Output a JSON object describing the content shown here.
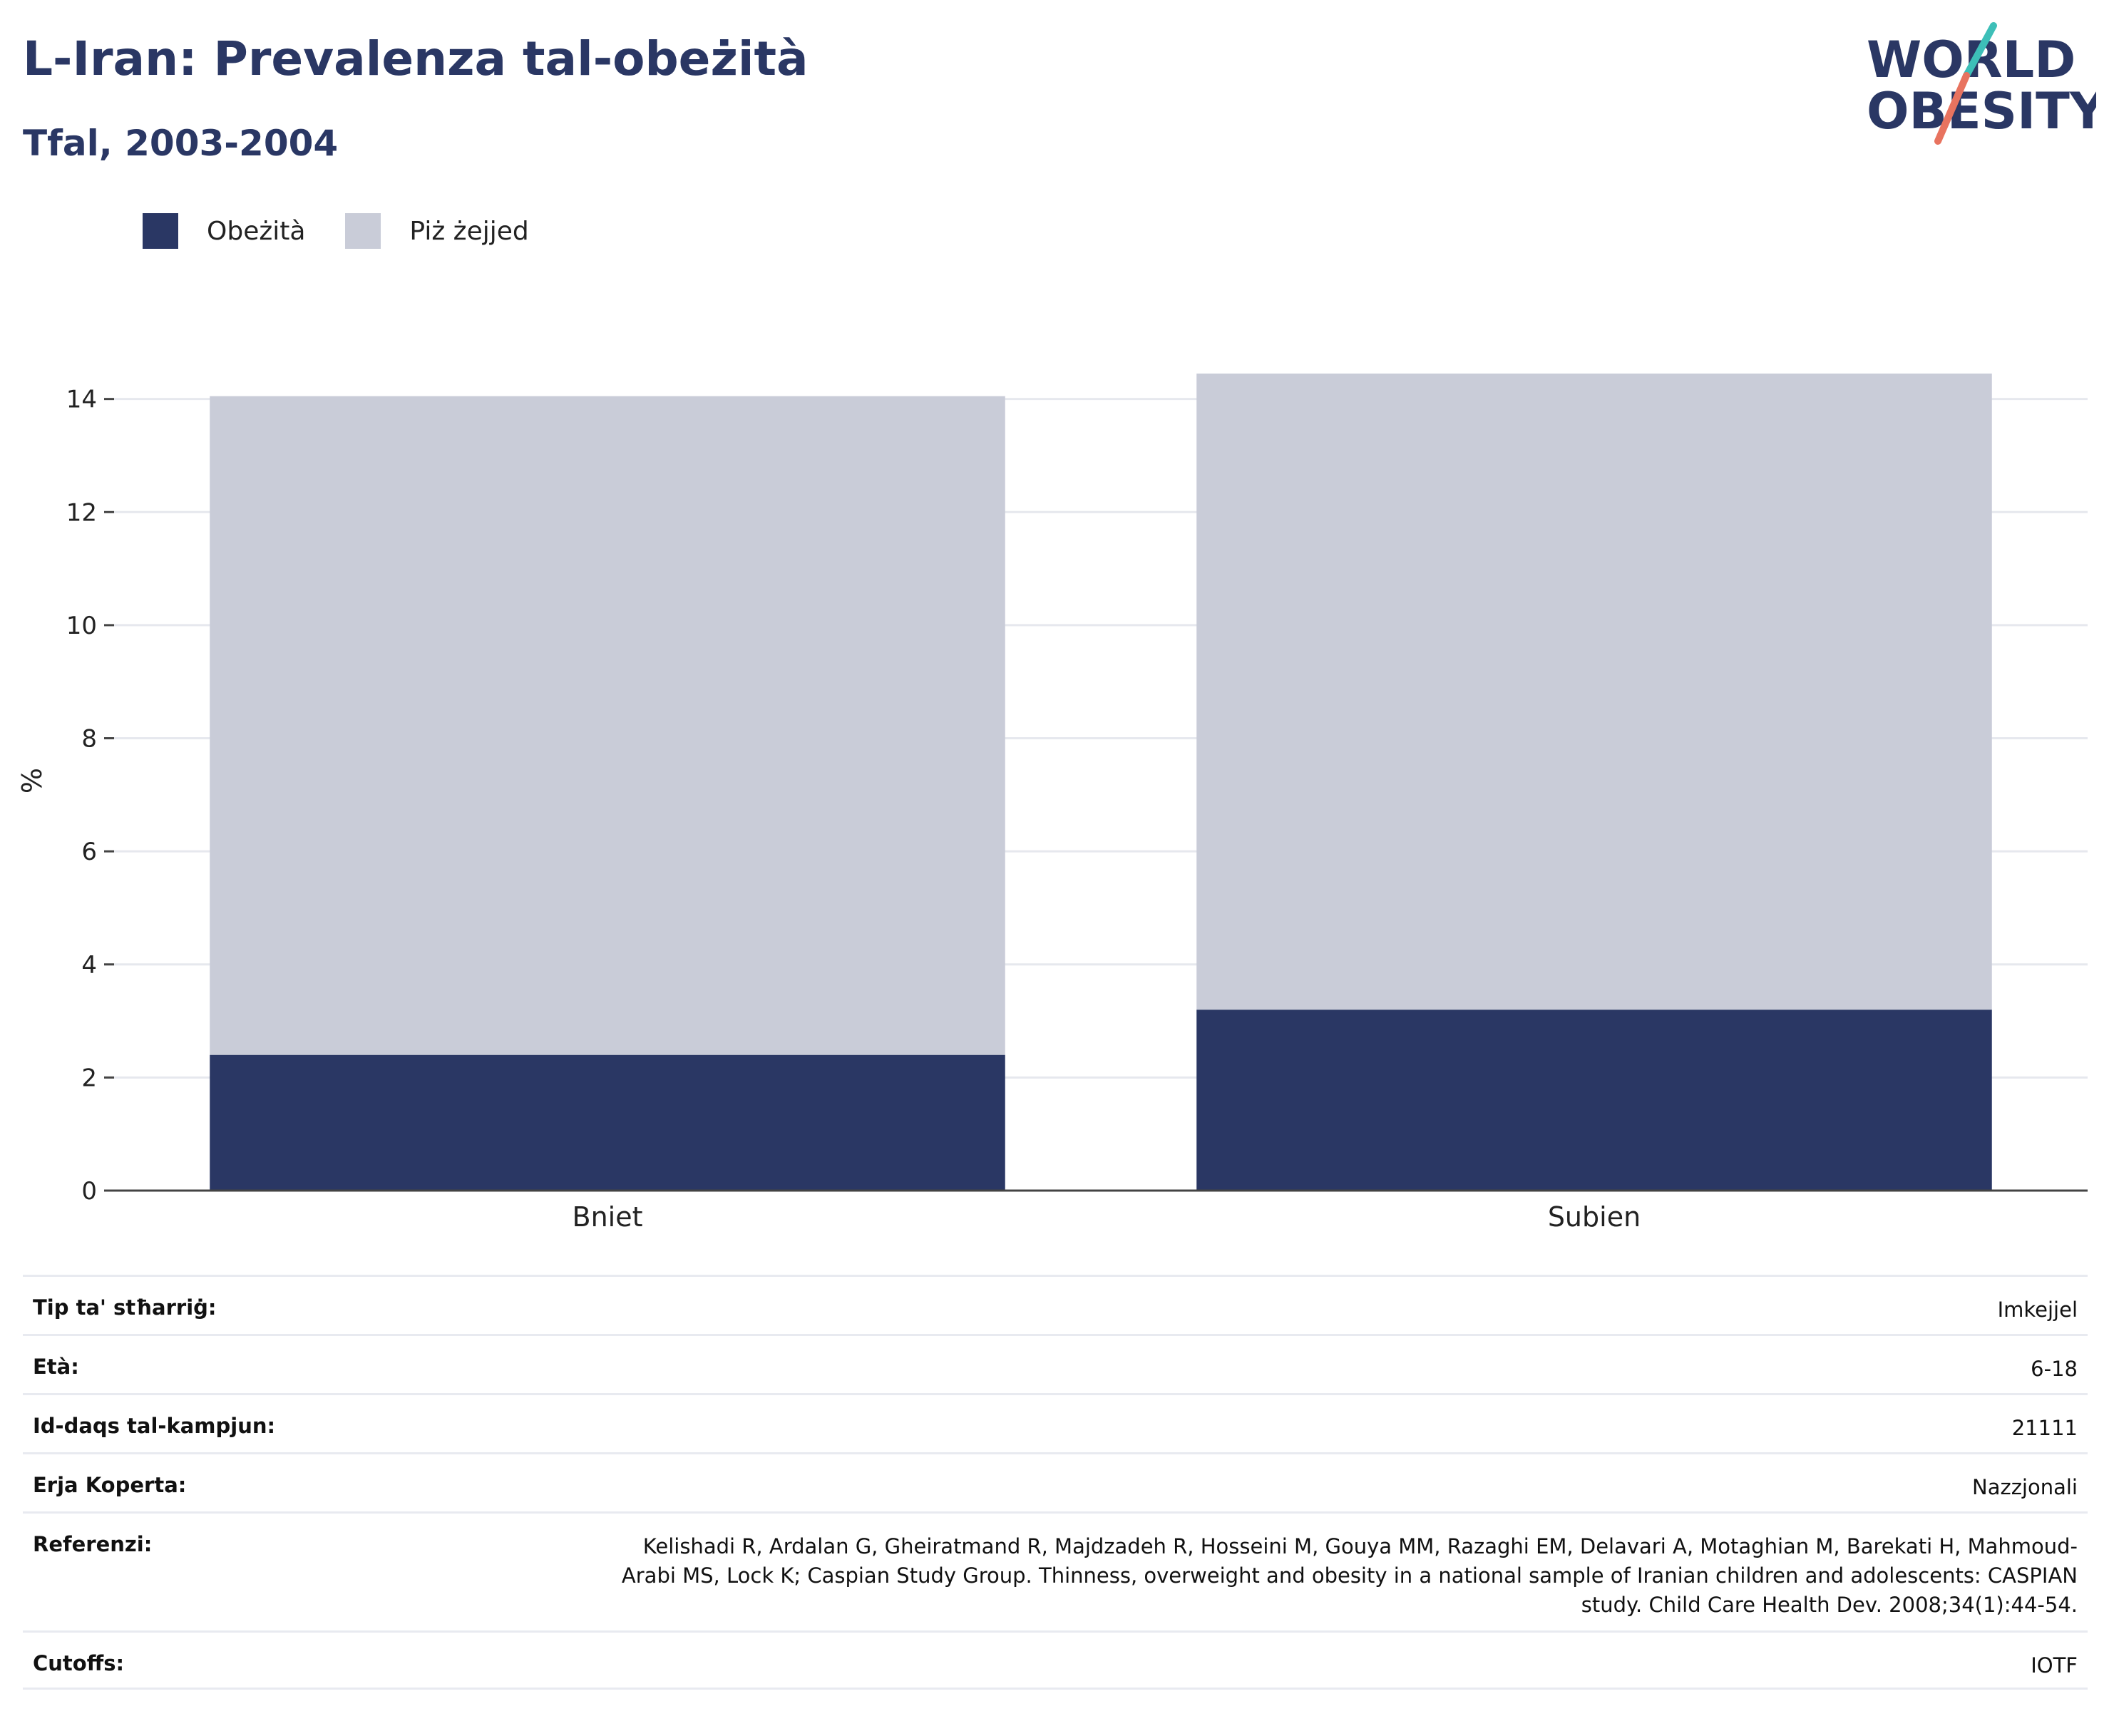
{
  "header": {
    "title": "L-Iran: Prevalenza tal-obeżità",
    "subtitle": "Tfal, 2003-2004"
  },
  "logo": {
    "line1": "WORLD",
    "line2": "OBESITY",
    "accent_teal": "#3dbfb8",
    "accent_coral": "#e8735f",
    "text_color": "#2a3764"
  },
  "legend": {
    "items": [
      {
        "label": "Obeżità",
        "color": "#2a3764"
      },
      {
        "label": "Piż żejjed",
        "color": "#c9ccd8"
      }
    ]
  },
  "chart_data": {
    "type": "bar",
    "stacked": true,
    "categories": [
      "Bniet",
      "Subien"
    ],
    "series": [
      {
        "name": "Obeżità",
        "values": [
          2.4,
          3.2
        ],
        "color": "#2a3764"
      },
      {
        "name": "Piż żejjed",
        "values": [
          11.65,
          11.25
        ],
        "color": "#c9ccd8"
      }
    ],
    "ylabel": "%",
    "ylim": [
      0,
      14.5
    ],
    "yticks": [
      0,
      2,
      4,
      6,
      8,
      10,
      12,
      14
    ],
    "grid": true,
    "legend_position": "top-left"
  },
  "info": {
    "rows": [
      {
        "label": "Tip ta' stħarriġ:",
        "value": "Imkejjel"
      },
      {
        "label": "Età:",
        "value": "6-18"
      },
      {
        "label": "Id-daqs tal-kampjun:",
        "value": "21111"
      },
      {
        "label": "Erja Koperta:",
        "value": "Nazzjonali"
      },
      {
        "label": "Referenzi:",
        "value": "Kelishadi R, Ardalan G, Gheiratmand R, Majdzadeh R, Hosseini M, Gouya MM, Razaghi EM, Delavari A, Motaghian M, Barekati H, Mahmoud-Arabi MS, Lock K; Caspian Study Group. Thinness, overweight and obesity in a national sample of Iranian children and adolescents: CASPIAN study. Child Care Health Dev. 2008;34(1):44-54."
      },
      {
        "label": "Cutoffs:",
        "value": "IOTF"
      }
    ]
  }
}
